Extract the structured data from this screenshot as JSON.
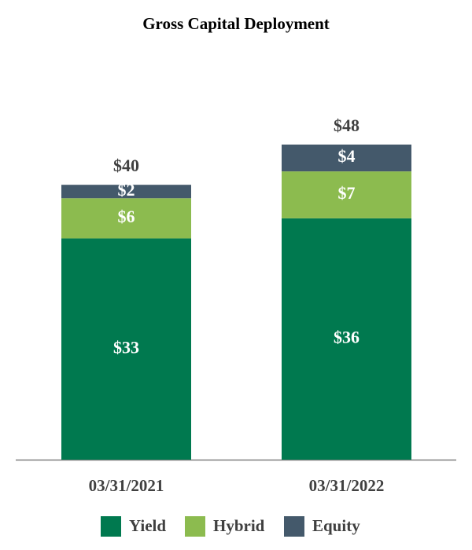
{
  "chart_data": {
    "type": "stacked-bar",
    "title": "Gross Capital Deployment",
    "categories": [
      "03/31/2021",
      "03/31/2022"
    ],
    "series": [
      {
        "name": "Yield",
        "color": "#00794f",
        "values": [
          33,
          36
        ],
        "value_labels": [
          "$33",
          "$36"
        ]
      },
      {
        "name": "Hybrid",
        "color": "#8cbb4f",
        "values": [
          6,
          7
        ],
        "value_labels": [
          "$6",
          "$7"
        ]
      },
      {
        "name": "Equity",
        "color": "#44596b",
        "values": [
          2,
          4
        ],
        "value_labels": [
          "$2",
          "$4"
        ]
      }
    ],
    "totals": [
      40,
      48
    ],
    "total_labels": [
      "$40",
      "$48"
    ]
  }
}
